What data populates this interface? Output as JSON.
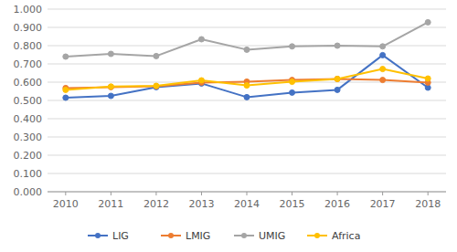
{
  "chart_data": {
    "type": "line",
    "x": [
      2010,
      2011,
      2012,
      2013,
      2014,
      2015,
      2016,
      2017,
      2018
    ],
    "series": [
      {
        "name": "LIG",
        "color": "#4472C4",
        "marker": "circle",
        "values": [
          0.515,
          0.525,
          0.573,
          0.593,
          0.518,
          0.543,
          0.558,
          0.748,
          0.57
        ]
      },
      {
        "name": "LMIG",
        "color": "#ED7D31",
        "marker": "circle",
        "values": [
          0.568,
          0.573,
          0.578,
          0.598,
          0.603,
          0.612,
          0.618,
          0.612,
          0.598
        ]
      },
      {
        "name": "UMIG",
        "color": "#A5A5A5",
        "marker": "circle",
        "values": [
          0.74,
          0.755,
          0.743,
          0.835,
          0.778,
          0.796,
          0.8,
          0.796,
          0.928
        ]
      },
      {
        "name": "Africa",
        "color": "#FFC000",
        "marker": "circle",
        "values": [
          0.558,
          0.576,
          0.58,
          0.61,
          0.582,
          0.602,
          0.618,
          0.672,
          0.62
        ]
      }
    ],
    "xlim": [
      2009.6,
      2018.4
    ],
    "xticks": [
      2010,
      2011,
      2012,
      2013,
      2014,
      2015,
      2016,
      2017,
      2018
    ],
    "ylim": [
      0.0,
      1.0
    ],
    "yticks": [
      {
        "value": 0.0,
        "label": "0.000"
      },
      {
        "value": 0.1,
        "label": "0.100"
      },
      {
        "value": 0.2,
        "label": "0.200"
      },
      {
        "value": 0.3,
        "label": "0.300"
      },
      {
        "value": 0.4,
        "label": "0.400"
      },
      {
        "value": 0.5,
        "label": "0.500"
      },
      {
        "value": 0.6,
        "label": "0.600"
      },
      {
        "value": 0.7,
        "label": "0.700"
      },
      {
        "value": 0.8,
        "label": "0.800"
      },
      {
        "value": 0.9,
        "label": "0.900"
      },
      {
        "value": 1.0,
        "label": "1.000"
      }
    ],
    "grid": true,
    "legend": "bottom"
  }
}
